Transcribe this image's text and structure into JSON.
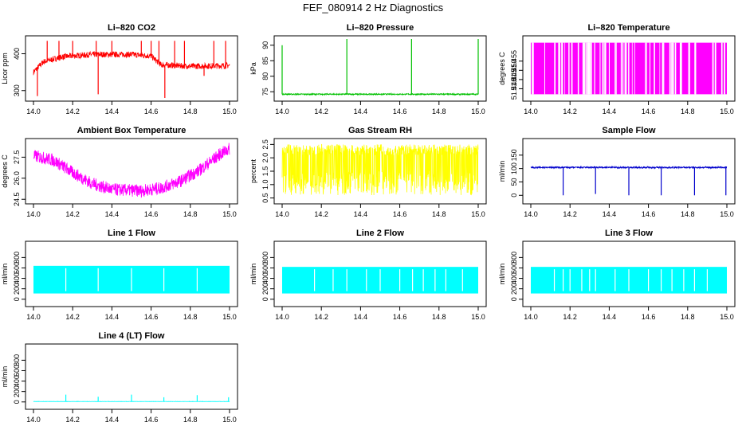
{
  "title": "FEF_080914  2 Hz Diagnostics",
  "chart_data": [
    {
      "type": "line",
      "title": "Li–820 CO2",
      "ylabel": "Licor ppm",
      "color": "#ff0000",
      "xlim": [
        14.0,
        15.0
      ],
      "ylim": [
        280,
        440
      ],
      "xticks": [
        "14.0",
        "14.2",
        "14.4",
        "14.6",
        "14.8",
        "15.0"
      ],
      "yticks": [
        {
          "v": 300,
          "label": "300"
        },
        {
          "v": 400,
          "label": "400"
        }
      ],
      "series": [
        {
          "name": "CO2",
          "base": [
            [
              14.0,
              350
            ],
            [
              14.05,
              378
            ],
            [
              14.15,
              392
            ],
            [
              14.3,
              398
            ],
            [
              14.5,
              398
            ],
            [
              14.6,
              394
            ],
            [
              14.65,
              370
            ],
            [
              14.8,
              366
            ],
            [
              15.0,
              368
            ]
          ],
          "noise": 8,
          "spikes": [
            [
              14.07,
              435
            ],
            [
              14.13,
              435
            ],
            [
              14.2,
              435
            ],
            [
              14.32,
              435
            ],
            [
              14.4,
              435
            ],
            [
              14.55,
              435
            ],
            [
              14.6,
              435
            ],
            [
              14.64,
              435
            ],
            [
              14.72,
              435
            ],
            [
              14.77,
              435
            ],
            [
              14.92,
              435
            ],
            [
              14.98,
              435
            ]
          ],
          "dips": [
            [
              14.02,
              285
            ],
            [
              14.33,
              290
            ],
            [
              14.67,
              280
            ],
            [
              14.87,
              340
            ]
          ]
        }
      ]
    },
    {
      "type": "line",
      "title": "Li–820 Pressure",
      "ylabel": "kPa",
      "color": "#00c000",
      "xlim": [
        14.0,
        15.0
      ],
      "ylim": [
        73,
        92
      ],
      "xticks": [
        "14.0",
        "14.2",
        "14.4",
        "14.6",
        "14.8",
        "15.0"
      ],
      "yticks": [
        {
          "v": 75,
          "label": "75"
        },
        {
          "v": 80,
          "label": "80"
        },
        {
          "v": 85,
          "label": "85"
        },
        {
          "v": 90,
          "label": "90"
        }
      ],
      "series": [
        {
          "name": "Pressure",
          "base": [
            [
              14.0,
              74.2
            ],
            [
              15.0,
              74.2
            ]
          ],
          "noise": 0.2,
          "spikes": [
            [
              14.0,
              90
            ],
            [
              14.33,
              92
            ],
            [
              14.66,
              92
            ],
            [
              15.0,
              92
            ]
          ],
          "dips": []
        }
      ]
    },
    {
      "type": "bar",
      "title": "Li–820 Temperature",
      "ylabel": "degrees C",
      "color": "#ff00ff",
      "xlim": [
        14.0,
        15.0
      ],
      "ylim": [
        51.435,
        51.467
      ],
      "xticks": [
        "14.0",
        "14.2",
        "14.4",
        "14.6",
        "14.8",
        "15.0"
      ],
      "yticks": [
        {
          "v": 51.44,
          "label": "51.440"
        },
        {
          "v": 51.445,
          "label": "51.445"
        },
        {
          "v": 51.45,
          "label": "51.450"
        },
        {
          "v": 51.455,
          "label": "51.455"
        }
      ],
      "series": [
        {
          "name": "Temperature",
          "fill_range": [
            14.0,
            15.0
          ],
          "levels": [
            51.437,
            51.465
          ]
        }
      ]
    },
    {
      "type": "line",
      "title": "Ambient Box Temperature",
      "ylabel": "degrees C",
      "color": "#ff00ff",
      "xlim": [
        14.0,
        15.0
      ],
      "ylim": [
        24.4,
        28.6
      ],
      "xticks": [
        "14.0",
        "14.2",
        "14.4",
        "14.6",
        "14.8",
        "15.0"
      ],
      "yticks": [
        {
          "v": 24.5,
          "label": "24.5"
        },
        {
          "v": 26.0,
          "label": "26.0"
        },
        {
          "v": 27.5,
          "label": "27.5"
        }
      ],
      "series": [
        {
          "name": "Ambient",
          "base": [
            [
              14.0,
              27.6
            ],
            [
              14.1,
              27.3
            ],
            [
              14.2,
              26.4
            ],
            [
              14.3,
              25.6
            ],
            [
              14.4,
              25.2
            ],
            [
              14.55,
              25.1
            ],
            [
              14.65,
              25.3
            ],
            [
              14.75,
              25.8
            ],
            [
              14.85,
              26.6
            ],
            [
              14.95,
              27.7
            ],
            [
              15.0,
              28.1
            ]
          ],
          "noise": 0.45,
          "spikes": [],
          "dips": []
        }
      ]
    },
    {
      "type": "line",
      "title": "Gas Stream RH",
      "ylabel": "percent",
      "color": "#ffff00",
      "xlim": [
        14.0,
        15.0
      ],
      "ylim": [
        0.4,
        2.6
      ],
      "xticks": [
        "14.0",
        "14.2",
        "14.4",
        "14.6",
        "14.8",
        "15.0"
      ],
      "yticks": [
        {
          "v": 0.5,
          "label": "0.5"
        },
        {
          "v": 1.0,
          "label": "1.0"
        },
        {
          "v": 1.5,
          "label": "1.5"
        },
        {
          "v": 2.0,
          "label": "2.0"
        },
        {
          "v": 2.5,
          "label": "2.5"
        }
      ],
      "series": [
        {
          "name": "RH",
          "base": [
            [
              14.0,
              2.3
            ],
            [
              15.0,
              2.3
            ]
          ],
          "noise": 0.2,
          "low": 0.6,
          "spikes": [],
          "dips": []
        }
      ]
    },
    {
      "type": "line",
      "title": "Sample Flow",
      "ylabel": "ml/min",
      "color": "#0000cc",
      "xlim": [
        14.0,
        15.0
      ],
      "ylim": [
        -20,
        200
      ],
      "xticks": [
        "14.0",
        "14.2",
        "14.4",
        "14.6",
        "14.8",
        "15.0"
      ],
      "yticks": [
        {
          "v": 0,
          "label": "0"
        },
        {
          "v": 50,
          "label": "50"
        },
        {
          "v": 100,
          "label": "100"
        },
        {
          "v": 150,
          "label": "150"
        }
      ],
      "series": [
        {
          "name": "Sample",
          "base": [
            [
              14.0,
              104
            ],
            [
              15.0,
              104
            ]
          ],
          "noise": 3,
          "spikes": [],
          "dips": [
            [
              14.165,
              0
            ],
            [
              14.33,
              5
            ],
            [
              14.5,
              0
            ],
            [
              14.665,
              0
            ],
            [
              14.835,
              0
            ],
            [
              14.995,
              0
            ]
          ]
        }
      ]
    },
    {
      "type": "line",
      "title": "Line 1 Flow",
      "ylabel": "ml/min",
      "color": "#00ffff",
      "xlim": [
        14.0,
        15.0
      ],
      "ylim": [
        -80,
        1050
      ],
      "xticks": [
        "14.0",
        "14.2",
        "14.4",
        "14.6",
        "14.8",
        "15.0"
      ],
      "yticks": [
        {
          "v": 0,
          "label": "0"
        },
        {
          "v": 200,
          "label": "200"
        },
        {
          "v": 400,
          "label": "400"
        },
        {
          "v": 600,
          "label": "600"
        },
        {
          "v": 800,
          "label": "800"
        }
      ],
      "series": [
        {
          "name": "Line1",
          "fill_range": [
            14.0,
            15.0
          ],
          "levels": [
            110,
            640
          ],
          "gaps": [
            14.165,
            14.33,
            14.5,
            14.665,
            14.835
          ]
        }
      ]
    },
    {
      "type": "line",
      "title": "Line 2 Flow",
      "ylabel": "ml/min",
      "color": "#00ffff",
      "xlim": [
        14.0,
        15.0
      ],
      "ylim": [
        -80,
        1050
      ],
      "xticks": [
        "14.0",
        "14.2",
        "14.4",
        "14.6",
        "14.8",
        "15.0"
      ],
      "yticks": [
        {
          "v": 0,
          "label": "0"
        },
        {
          "v": 200,
          "label": "200"
        },
        {
          "v": 400,
          "label": "400"
        },
        {
          "v": 600,
          "label": "600"
        },
        {
          "v": 800,
          "label": "800"
        }
      ],
      "series": [
        {
          "name": "Line2",
          "fill_range": [
            14.0,
            15.0
          ],
          "levels": [
            110,
            620
          ],
          "gaps": [
            14.165,
            14.26,
            14.33,
            14.43,
            14.5,
            14.6,
            14.665,
            14.72,
            14.78,
            14.835,
            14.92
          ]
        }
      ]
    },
    {
      "type": "line",
      "title": "Line 3 Flow",
      "ylabel": "ml/min",
      "color": "#00ffff",
      "xlim": [
        14.0,
        15.0
      ],
      "ylim": [
        -80,
        1050
      ],
      "xticks": [
        "14.0",
        "14.2",
        "14.4",
        "14.6",
        "14.8",
        "15.0"
      ],
      "yticks": [
        {
          "v": 0,
          "label": "0"
        },
        {
          "v": 200,
          "label": "200"
        },
        {
          "v": 400,
          "label": "400"
        },
        {
          "v": 600,
          "label": "600"
        },
        {
          "v": 800,
          "label": "800"
        }
      ],
      "series": [
        {
          "name": "Line3",
          "fill_range": [
            14.0,
            15.0
          ],
          "levels": [
            110,
            620
          ],
          "gaps": [
            14.12,
            14.165,
            14.2,
            14.26,
            14.3,
            14.33,
            14.43,
            14.5,
            14.6,
            14.665,
            14.72,
            14.78,
            14.835,
            14.9
          ]
        }
      ]
    },
    {
      "type": "line",
      "title": "Line 4 (LT) Flow",
      "ylabel": "ml/min",
      "color": "#00ffff",
      "xlim": [
        14.0,
        15.0
      ],
      "ylim": [
        -80,
        1050
      ],
      "xticks": [
        "14.0",
        "14.2",
        "14.4",
        "14.6",
        "14.8",
        "15.0"
      ],
      "yticks": [
        {
          "v": 0,
          "label": "0"
        },
        {
          "v": 200,
          "label": "200"
        },
        {
          "v": 400,
          "label": "400"
        },
        {
          "v": 600,
          "label": "600"
        },
        {
          "v": 800,
          "label": "800"
        }
      ],
      "series": [
        {
          "name": "Line4",
          "base": [
            [
              14.0,
              8
            ],
            [
              15.0,
              8
            ]
          ],
          "noise": 3,
          "spikes": [
            [
              14.165,
              140
            ],
            [
              14.33,
              100
            ],
            [
              14.5,
              140
            ],
            [
              14.665,
              90
            ],
            [
              14.835,
              130
            ],
            [
              14.995,
              90
            ]
          ],
          "dips": []
        }
      ]
    }
  ]
}
